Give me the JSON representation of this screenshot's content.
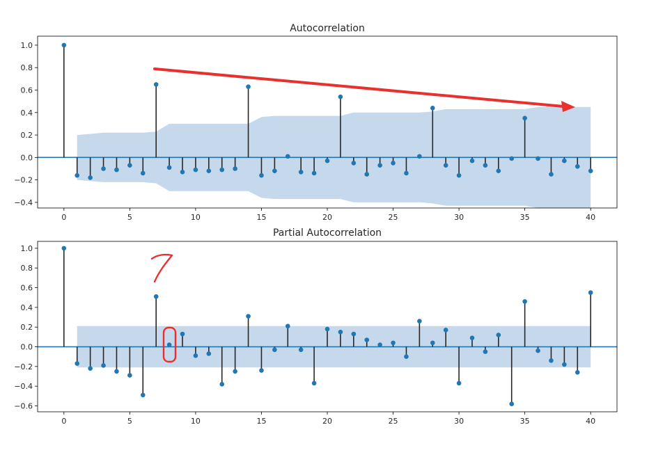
{
  "chart_data": [
    {
      "type": "stem",
      "title": "Autocorrelation",
      "xlim": [
        -2,
        42
      ],
      "ylim": [
        -0.45,
        1.08
      ],
      "xticks": [
        0,
        5,
        10,
        15,
        20,
        25,
        30,
        35,
        40
      ],
      "xtick_labels": [
        "0",
        "5",
        "10",
        "15",
        "20",
        "25",
        "30",
        "35",
        "40"
      ],
      "yticks": [
        -0.4,
        -0.2,
        0.0,
        0.2,
        0.4,
        0.6,
        0.8,
        1.0
      ],
      "ytick_labels": [
        "−0.4",
        "−0.2",
        "0.0",
        "0.2",
        "0.4",
        "0.6",
        "0.8",
        "1.0"
      ],
      "lags": [
        0,
        1,
        2,
        3,
        4,
        5,
        6,
        7,
        8,
        9,
        10,
        11,
        12,
        13,
        14,
        15,
        16,
        17,
        18,
        19,
        20,
        21,
        22,
        23,
        24,
        25,
        26,
        27,
        28,
        29,
        30,
        31,
        32,
        33,
        34,
        35,
        36,
        37,
        38,
        39,
        40
      ],
      "values": [
        1.0,
        -0.16,
        -0.18,
        -0.1,
        -0.11,
        -0.07,
        -0.14,
        0.65,
        -0.09,
        -0.13,
        -0.11,
        -0.12,
        -0.11,
        -0.1,
        0.63,
        -0.16,
        -0.12,
        0.01,
        -0.13,
        -0.14,
        -0.03,
        0.54,
        -0.05,
        -0.15,
        -0.07,
        -0.05,
        -0.14,
        0.01,
        0.44,
        -0.07,
        -0.16,
        -0.03,
        -0.07,
        -0.12,
        -0.01,
        0.35,
        -0.01,
        -0.15,
        -0.03,
        -0.08,
        -0.12
      ],
      "confint_upper": [
        null,
        0.2,
        0.21,
        0.22,
        0.22,
        0.22,
        0.22,
        0.23,
        0.3,
        0.3,
        0.3,
        0.3,
        0.3,
        0.3,
        0.3,
        0.36,
        0.37,
        0.37,
        0.37,
        0.37,
        0.37,
        0.37,
        0.4,
        0.4,
        0.4,
        0.4,
        0.4,
        0.4,
        0.41,
        0.43,
        0.43,
        0.43,
        0.43,
        0.43,
        0.43,
        0.43,
        0.45,
        0.45,
        0.45,
        0.45,
        0.45
      ]
    },
    {
      "type": "stem",
      "title": "Partial Autocorrelation",
      "xlim": [
        -2,
        42
      ],
      "ylim": [
        -0.66,
        1.07
      ],
      "xticks": [
        0,
        5,
        10,
        15,
        20,
        25,
        30,
        35,
        40
      ],
      "xtick_labels": [
        "0",
        "5",
        "10",
        "15",
        "20",
        "25",
        "30",
        "35",
        "40"
      ],
      "yticks": [
        -0.6,
        -0.4,
        -0.2,
        0.0,
        0.2,
        0.4,
        0.6,
        0.8,
        1.0
      ],
      "ytick_labels": [
        "−0.6",
        "−0.4",
        "−0.2",
        "0.0",
        "0.2",
        "0.4",
        "0.6",
        "0.8",
        "1.0"
      ],
      "lags": [
        0,
        1,
        2,
        3,
        4,
        5,
        6,
        7,
        8,
        9,
        10,
        11,
        12,
        13,
        14,
        15,
        16,
        17,
        18,
        19,
        20,
        21,
        22,
        23,
        24,
        25,
        26,
        27,
        28,
        29,
        30,
        31,
        32,
        33,
        34,
        35,
        36,
        37,
        38,
        39,
        40
      ],
      "values": [
        1.0,
        -0.17,
        -0.22,
        -0.19,
        -0.25,
        -0.29,
        -0.49,
        0.51,
        0.02,
        0.13,
        -0.09,
        -0.07,
        -0.38,
        -0.25,
        0.31,
        -0.24,
        -0.03,
        0.21,
        -0.03,
        -0.37,
        0.18,
        0.15,
        0.13,
        0.07,
        0.02,
        0.04,
        -0.1,
        0.26,
        0.04,
        0.17,
        -0.37,
        0.09,
        -0.05,
        0.12,
        -0.58,
        0.46,
        -0.04,
        -0.14,
        -0.18,
        -0.26,
        0.55
      ],
      "confint_upper": [
        null,
        0.21,
        0.21,
        0.21,
        0.21,
        0.21,
        0.21,
        0.21,
        0.21,
        0.21,
        0.21,
        0.21,
        0.21,
        0.21,
        0.21,
        0.21,
        0.21,
        0.21,
        0.21,
        0.21,
        0.21,
        0.21,
        0.21,
        0.21,
        0.21,
        0.21,
        0.21,
        0.21,
        0.21,
        0.21,
        0.21,
        0.21,
        0.21,
        0.21,
        0.21,
        0.21,
        0.21,
        0.21,
        0.21,
        0.21,
        0.21
      ]
    }
  ],
  "annotations": {
    "handwritten_note": "7",
    "arrow_description": "red arrow pointing toward decreasing seasonal peaks",
    "highlight_description": "red circle around PACF lag 8"
  },
  "colors": {
    "stem": "#262626",
    "marker": "#1f77b4",
    "band": "#c6d9ec",
    "zero_line": "#1f77b4",
    "annotation": "#e8302f"
  }
}
